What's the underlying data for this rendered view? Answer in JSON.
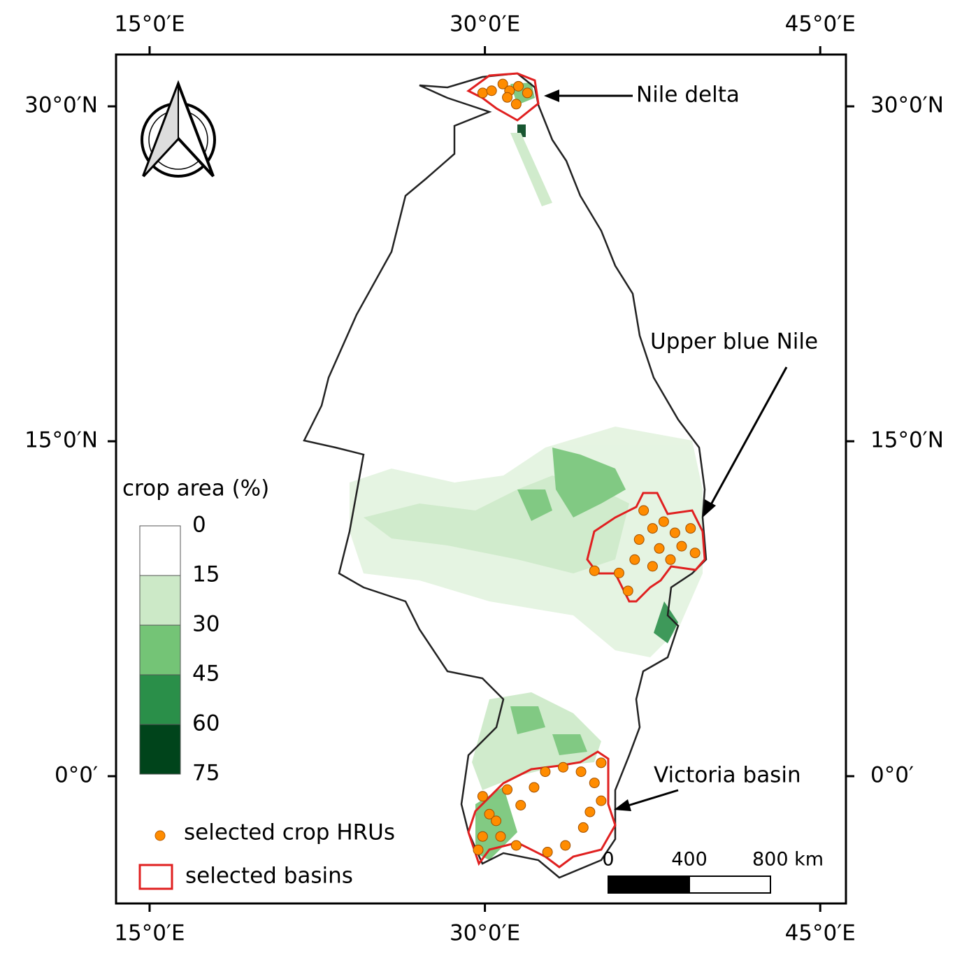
{
  "map": {
    "xticks": [
      {
        "value": 15,
        "label": "15°0′E"
      },
      {
        "value": 30,
        "label": "30°0′E"
      },
      {
        "value": 45,
        "label": "45°0′E"
      }
    ],
    "yticks": [
      {
        "value": 30,
        "label": "30°0′N"
      },
      {
        "value": 15,
        "label": "15°0′N"
      },
      {
        "value": 0,
        "label": "0°0′"
      }
    ],
    "xlim": [
      13.5,
      46.15
    ],
    "ylim": [
      -5.7,
      32.32
    ],
    "legend": {
      "title": "crop area (%)",
      "breaks": [
        0,
        15,
        30,
        45,
        60,
        75
      ],
      "colors": [
        "#ffffff",
        "#cce9c7",
        "#74c476",
        "#2a8f49",
        "#00441b"
      ],
      "items": [
        {
          "label": "selected crop HRUs",
          "color": "#ff8c00"
        },
        {
          "label": "selected basins",
          "color": "#e02020"
        }
      ]
    },
    "scale_bar": {
      "ticks": [
        0,
        400,
        {
          "value": 800,
          "label": "800 km"
        }
      ]
    },
    "annotations": [
      "Nile delta",
      "Upper blue Nile",
      "Victoria basin"
    ],
    "hru_points": [
      [
        29.9,
        30.6
      ],
      [
        30.3,
        30.7
      ],
      [
        30.8,
        31.0
      ],
      [
        31.1,
        30.7
      ],
      [
        31.5,
        30.9
      ],
      [
        31.9,
        30.6
      ],
      [
        31.4,
        30.1
      ],
      [
        31.0,
        30.4
      ],
      [
        37.1,
        11.9
      ],
      [
        37.5,
        11.1
      ],
      [
        38.0,
        11.4
      ],
      [
        38.5,
        10.9
      ],
      [
        39.2,
        11.1
      ],
      [
        36.9,
        10.6
      ],
      [
        37.8,
        10.2
      ],
      [
        38.8,
        10.3
      ],
      [
        39.4,
        10.0
      ],
      [
        36.7,
        9.7
      ],
      [
        37.5,
        9.4
      ],
      [
        38.3,
        9.7
      ],
      [
        34.9,
        9.2
      ],
      [
        36.0,
        9.1
      ],
      [
        36.4,
        8.3
      ],
      [
        29.9,
        -0.9
      ],
      [
        30.2,
        -1.7
      ],
      [
        30.7,
        -2.7
      ],
      [
        29.7,
        -3.3
      ],
      [
        29.9,
        -2.7
      ],
      [
        30.5,
        -2.0
      ],
      [
        31.0,
        -0.6
      ],
      [
        31.6,
        -1.3
      ],
      [
        32.2,
        -0.5
      ],
      [
        32.7,
        0.2
      ],
      [
        33.5,
        0.4
      ],
      [
        34.3,
        0.2
      ],
      [
        34.9,
        -0.3
      ],
      [
        35.2,
        -1.1
      ],
      [
        34.7,
        -1.6
      ],
      [
        34.4,
        -2.3
      ],
      [
        33.6,
        -3.1
      ],
      [
        32.8,
        -3.4
      ],
      [
        35.2,
        0.6
      ],
      [
        31.4,
        -3.1
      ]
    ]
  }
}
